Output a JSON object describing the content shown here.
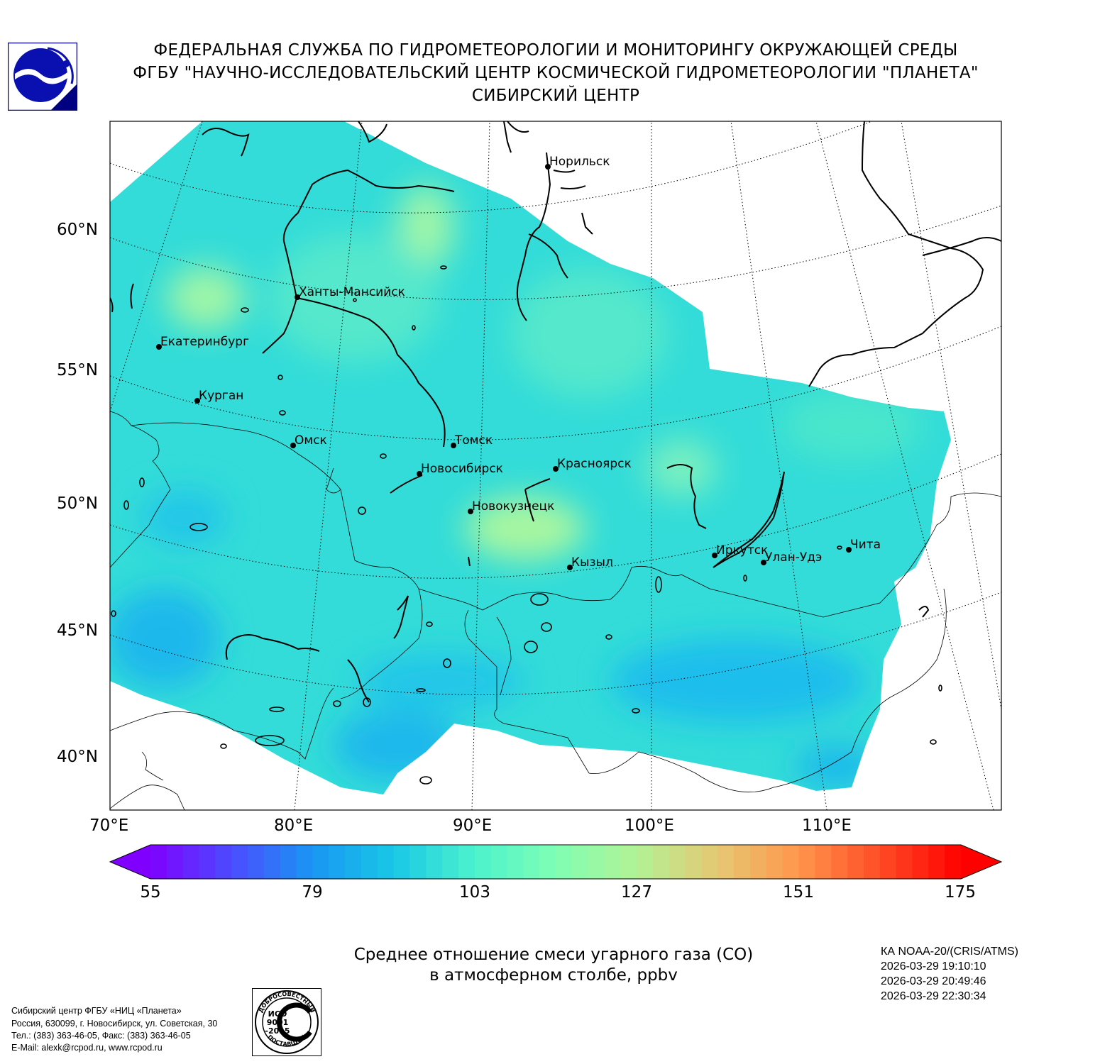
{
  "header": {
    "line1": "ФЕДЕРАЛЬНАЯ СЛУЖБА ПО ГИДРОМЕТЕОРОЛОГИИ И МОНИТОРИНГУ ОКРУЖАЮЩЕЙ СРЕДЫ",
    "line2": "ФГБУ \"НАУЧНО-ИССЛЕДОВАТЕЛЬСКИЙ ЦЕНТР КОСМИЧЕСКОЙ ГИДРОМЕТЕОРОЛОГИИ \"ПЛАНЕТА\"",
    "line3": "СИБИРСКИЙ ЦЕНТР"
  },
  "map": {
    "lat_labels": [
      "60°N",
      "55°N",
      "50°N",
      "45°N",
      "40°N"
    ],
    "lon_labels": [
      "70°E",
      "80°E",
      "90°E",
      "100°E",
      "110°E"
    ],
    "cities": [
      {
        "name": "Норильск"
      },
      {
        "name": "Ханты-Мансийск"
      },
      {
        "name": "Екатеринбург"
      },
      {
        "name": "Курган"
      },
      {
        "name": "Омск"
      },
      {
        "name": "Томск"
      },
      {
        "name": "Новосибирск"
      },
      {
        "name": "Красноярск"
      },
      {
        "name": "Новокузнецк"
      },
      {
        "name": "Кызыл"
      },
      {
        "name": "Иркутск"
      },
      {
        "name": "Улан-Удэ"
      },
      {
        "name": "Чита"
      }
    ]
  },
  "colorbar": {
    "ticks": [
      "55",
      "79",
      "103",
      "127",
      "151",
      "175"
    ],
    "min": 55,
    "max": 175,
    "colors": [
      "#7f00ff",
      "#4c4cff",
      "#1996f3",
      "#19c8e6",
      "#4cf2ce",
      "#7ffeb3",
      "#b2f295",
      "#e6c873",
      "#ff964c",
      "#ff4c26",
      "#ff0000"
    ]
  },
  "caption": {
    "line1": "Среднее отношение смеси угарного газа (CO)",
    "line2": "в атмосферном столбе, ppbv"
  },
  "satellite": {
    "name": "КА NOAA-20/(CRIS/ATMS)",
    "times": [
      "2026-03-29 19:10:10",
      "2026-03-29 20:49:46",
      "2026-03-29 22:30:34"
    ]
  },
  "contact": {
    "line1": "Сибирский центр ФГБУ «НИЦ «Планета»",
    "line2": "Россия, 630099, г. Новосибирск, ул. Советская, 30",
    "line3": "Тел.: (383) 363-46-05, Факс: (383) 363-46-05",
    "line4": "E-Mail: alexk@rcpod.ru, www.rcpod.ru"
  },
  "iso_badge": {
    "top": "ДОБРОСОВЕСТНЫЙ",
    "middle": [
      "ИСО",
      "9001",
      "-2015"
    ],
    "bottom": "ПОСТАВЩИК"
  }
}
